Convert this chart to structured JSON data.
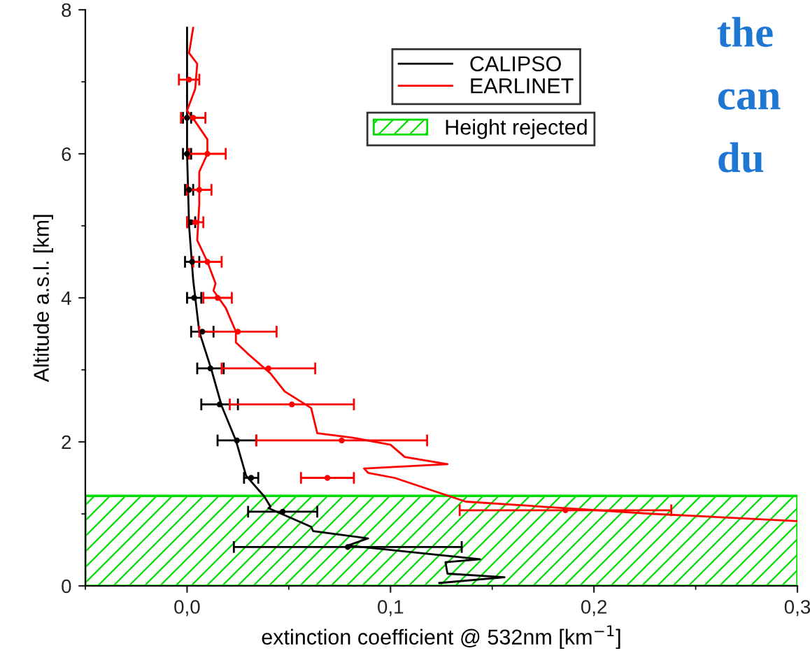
{
  "chart_data": {
    "type": "line",
    "xlabel": "extinction coefficient @ 532nm [km$^{−1}$]",
    "ylabel": "Altitude a.s.l. [km]",
    "series": [
      {
        "name": "CALIPSO",
        "color": "#000000",
        "x": [
          0.0,
          0.0,
          0.001,
          0.003,
          0.006,
          0.012,
          0.017,
          0.024,
          0.029,
          0.038,
          0.041,
          0.04,
          0.061,
          0.062,
          0.089,
          0.079,
          0.144,
          0.127,
          0.128,
          0.156,
          0.124
        ],
        "values": [
          7.75,
          6.0,
          5.0,
          4.25,
          3.53,
          3.0,
          2.5,
          2.02,
          1.53,
          1.24,
          1.1,
          1.08,
          0.82,
          0.76,
          0.66,
          0.56,
          0.37,
          0.33,
          0.17,
          0.12,
          0.04
        ]
      },
      {
        "name": "EARLINET",
        "color": "#ff0000",
        "x": [
          0.003,
          0.001,
          0.005,
          0.004,
          0.0,
          0.004,
          0.01,
          0.01,
          0.006,
          0.006,
          0.005,
          0.01,
          0.014,
          0.013,
          0.019,
          0.024,
          0.024,
          0.03,
          0.041,
          0.048,
          0.061,
          0.064,
          0.081,
          0.1,
          0.107,
          0.128,
          0.087,
          0.089,
          0.102,
          0.137,
          0.229,
          0.3
        ],
        "values": [
          7.75,
          7.4,
          7.25,
          6.9,
          6.6,
          6.45,
          6.2,
          6.0,
          5.75,
          5.3,
          4.8,
          4.5,
          4.2,
          4.1,
          3.86,
          3.53,
          3.38,
          3.22,
          2.95,
          2.7,
          2.47,
          2.12,
          2.06,
          1.96,
          1.79,
          1.69,
          1.63,
          1.57,
          1.5,
          1.17,
          1.0,
          0.9
        ]
      },
      {
        "type": "scatter",
        "color": "#000000",
        "x": [
          0.0,
          0.0,
          0.001,
          0.002,
          0.0025,
          0.0035,
          0.0075,
          0.0115,
          0.016,
          0.0245,
          0.0315,
          0.047,
          0.079
        ],
        "values": [
          6.5,
          6.0,
          5.5,
          5.05,
          4.5,
          4.0,
          3.53,
          3.02,
          2.52,
          2.02,
          1.5,
          1.03,
          0.54
        ],
        "xerrors": [
          [
            -0.002,
            0.002
          ],
          [
            -0.002,
            0.002
          ],
          [
            -0.001,
            0.003
          ],
          [
            0.0,
            0.004
          ],
          [
            -0.001,
            0.006
          ],
          [
            0.0,
            0.007
          ],
          [
            0.002,
            0.013
          ],
          [
            0.005,
            0.018
          ],
          [
            0.007,
            0.025
          ],
          [
            0.015,
            0.034
          ],
          [
            0.028,
            0.035
          ],
          [
            0.03,
            0.064
          ],
          [
            0.023,
            0.135
          ]
        ]
      },
      {
        "type": "scatter",
        "color": "#ff0000",
        "x": [
          0.001,
          0.003,
          0.01,
          0.006,
          0.004,
          0.01,
          0.015,
          0.025,
          0.04,
          0.0515,
          0.076,
          0.069,
          0.186
        ],
        "values": [
          7.03,
          6.5,
          6.0,
          5.5,
          5.05,
          4.5,
          4.0,
          3.53,
          3.02,
          2.52,
          2.02,
          1.5,
          1.05
        ],
        "xerrors": [
          [
            -0.004,
            0.006
          ],
          [
            -0.003,
            0.009
          ],
          [
            0.001,
            0.019
          ],
          [
            0.0,
            0.012
          ],
          [
            0.0,
            0.008
          ],
          [
            0.003,
            0.017
          ],
          [
            0.008,
            0.022
          ],
          [
            0.006,
            0.044
          ],
          [
            0.017,
            0.063
          ],
          [
            0.021,
            0.082
          ],
          [
            0.034,
            0.118
          ],
          [
            0.056,
            0.082
          ],
          [
            0.134,
            0.238
          ]
        ]
      }
    ],
    "bands": [
      {
        "axis": "y",
        "from": 0,
        "to": 1.25,
        "label": "Height rejected",
        "color": "#00dd00"
      }
    ],
    "xlim": [
      -0.05,
      0.3
    ],
    "xticks": [
      {
        "value": 0.0,
        "label": "0,0"
      },
      {
        "value": 0.1,
        "label": "0,1"
      },
      {
        "value": 0.2,
        "label": "0,2"
      },
      {
        "value": 0.3,
        "label": "0,3"
      }
    ],
    "ylim": [
      0,
      8
    ],
    "yticks": [
      0,
      2,
      4,
      6,
      8
    ],
    "legend": "top right",
    "grid": false,
    "marker": "none",
    "line_style": "solid",
    "annotations": [
      "the",
      "can",
      "du"
    ]
  }
}
